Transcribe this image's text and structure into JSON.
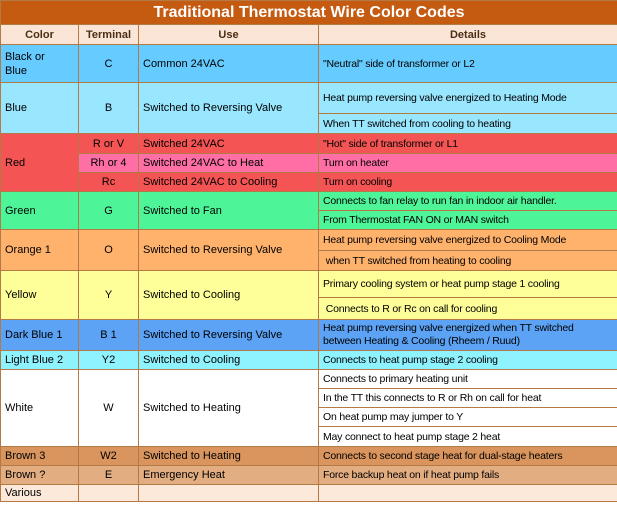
{
  "title": "Traditional Thermostat Wire Color Codes",
  "headers": {
    "color": "Color",
    "terminal": "Terminal",
    "use": "Use",
    "details": "Details"
  },
  "groups": [
    {
      "bg": "#66ccff",
      "color": "Black or\nBlue",
      "rows": [
        {
          "terminal": "C",
          "use": "Common 24VAC",
          "details": [
            "\"Neutral\" side of transformer or L2"
          ]
        }
      ]
    },
    {
      "bg": "#99e6ff",
      "color": "Blue",
      "rows": [
        {
          "terminal": "B",
          "use": "Switched to Reversing Valve",
          "details": [
            "Heat pump reversing valve energized to Heating Mode",
            "When TT switched from cooling to heating"
          ]
        }
      ]
    },
    {
      "bg": "#f55454",
      "color": "Red",
      "rows": [
        {
          "terminal": "R or V",
          "use": "Switched 24VAC",
          "details": [
            "\"Hot\" side of transformer or L1"
          ],
          "bg": "#f55454"
        },
        {
          "terminal": "Rh or 4",
          "use": "Switched 24VAC to Heat",
          "details": [
            "Turn on heater"
          ],
          "bg": "#ff6fa6"
        },
        {
          "terminal": "Rc",
          "use": "Switched 24VAC to Cooling",
          "details": [
            "Turn on cooling"
          ],
          "bg": "#f55454"
        }
      ]
    },
    {
      "bg": "#4df598",
      "color": "Green",
      "rows": [
        {
          "terminal": "G",
          "use": "Switched to Fan",
          "details": [
            "Connects to fan relay to run fan in indoor air handler.",
            "From Thermostat FAN ON or MAN switch"
          ]
        }
      ]
    },
    {
      "bg": "#ffb26b",
      "color": "Orange 1",
      "rows": [
        {
          "terminal": "O",
          "use": "Switched to Reversing Valve",
          "details": [
            "Heat pump reversing valve energized to Cooling Mode",
            " when TT switched from heating to cooling"
          ]
        }
      ]
    },
    {
      "bg": "#ffff99",
      "color": "Yellow",
      "rows": [
        {
          "terminal": "Y",
          "use": "Switched to Cooling",
          "details": [
            "Primary cooling system or heat pump stage 1 cooling",
            " Connects to R or Rc on call for cooling"
          ]
        }
      ]
    },
    {
      "bg": "#5ca3f5",
      "color": "Dark Blue 1",
      "rows": [
        {
          "terminal": "B 1",
          "use": "Switched to Reversing Valve",
          "details": [
            "Heat pump reversing valve energized when TT switched\nbetween Heating & Cooling (Rheem / Ruud)"
          ]
        }
      ]
    },
    {
      "bg": "#8ef2ff",
      "color": "Light Blue 2",
      "rows": [
        {
          "terminal": "Y2",
          "use": "Switched to Cooling",
          "details": [
            "Connects to heat pump stage 2 cooling"
          ]
        }
      ]
    },
    {
      "bg": "#ffffff",
      "color": "White",
      "rows": [
        {
          "terminal": "W",
          "use": "Switched to Heating",
          "details": [
            "Connects to primary heating unit",
            "In the TT this connects to R or Rh on call for heat",
            "On heat pump may jumper to Y",
            "May connect to heat pump stage 2 heat"
          ]
        }
      ]
    },
    {
      "bg": "#d9955d",
      "color": "Brown 3",
      "rows": [
        {
          "terminal": "W2",
          "use": "Switched to Heating",
          "details": [
            "Connects to second stage heat for dual-stage heaters"
          ]
        }
      ]
    },
    {
      "bg": "#e3ad82",
      "color": "Brown ?",
      "rows": [
        {
          "terminal": "E",
          "use": "Emergency Heat",
          "details": [
            "Force backup heat on if heat pump fails"
          ]
        }
      ]
    },
    {
      "bg": "#fde9d9",
      "color": "Various",
      "rows": [
        {
          "terminal": "",
          "use": "",
          "details": [
            ""
          ]
        }
      ]
    }
  ]
}
